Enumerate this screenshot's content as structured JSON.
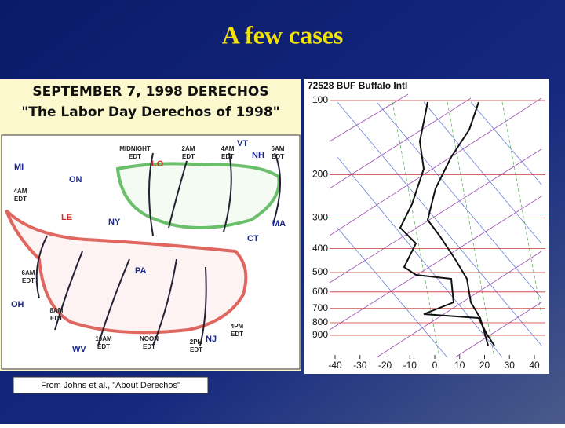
{
  "slide": {
    "title": "A few cases"
  },
  "map": {
    "title": "SEPTEMBER 7, 1998 DERECHOS",
    "subtitle": "\"The Labor Day Derechos of 1998\"",
    "regions": [
      "MI",
      "ON",
      "LE",
      "NY",
      "LO",
      "VT",
      "NH",
      "MA",
      "CT",
      "PA",
      "OH",
      "WV",
      "NJ"
    ],
    "times": [
      {
        "time": "MIDNIGHT",
        "zone": "EDT"
      },
      {
        "time": "2AM",
        "zone": "EDT"
      },
      {
        "time": "4AM",
        "zone": "EDT"
      },
      {
        "time": "6AM",
        "zone": "EDT"
      },
      {
        "time": "4AM",
        "zone": "EDT"
      },
      {
        "time": "6AM",
        "zone": "EDT"
      },
      {
        "time": "8AM",
        "zone": "EDT"
      },
      {
        "time": "10AM",
        "zone": "EDT"
      },
      {
        "time": "NOON",
        "zone": "EDT"
      },
      {
        "time": "2PM",
        "zone": "EDT"
      },
      {
        "time": "4PM",
        "zone": "EDT"
      }
    ],
    "caption": "From Johns et al., \"About Derechos\""
  },
  "skewt": {
    "station": "72528 BUF Buffalo Intl",
    "pressure_ticks": [
      100,
      200,
      300,
      400,
      500,
      600,
      700,
      800,
      900
    ],
    "temperature_ticks": [
      -40,
      -30,
      -20,
      -10,
      0,
      10,
      20,
      30,
      40
    ]
  }
}
